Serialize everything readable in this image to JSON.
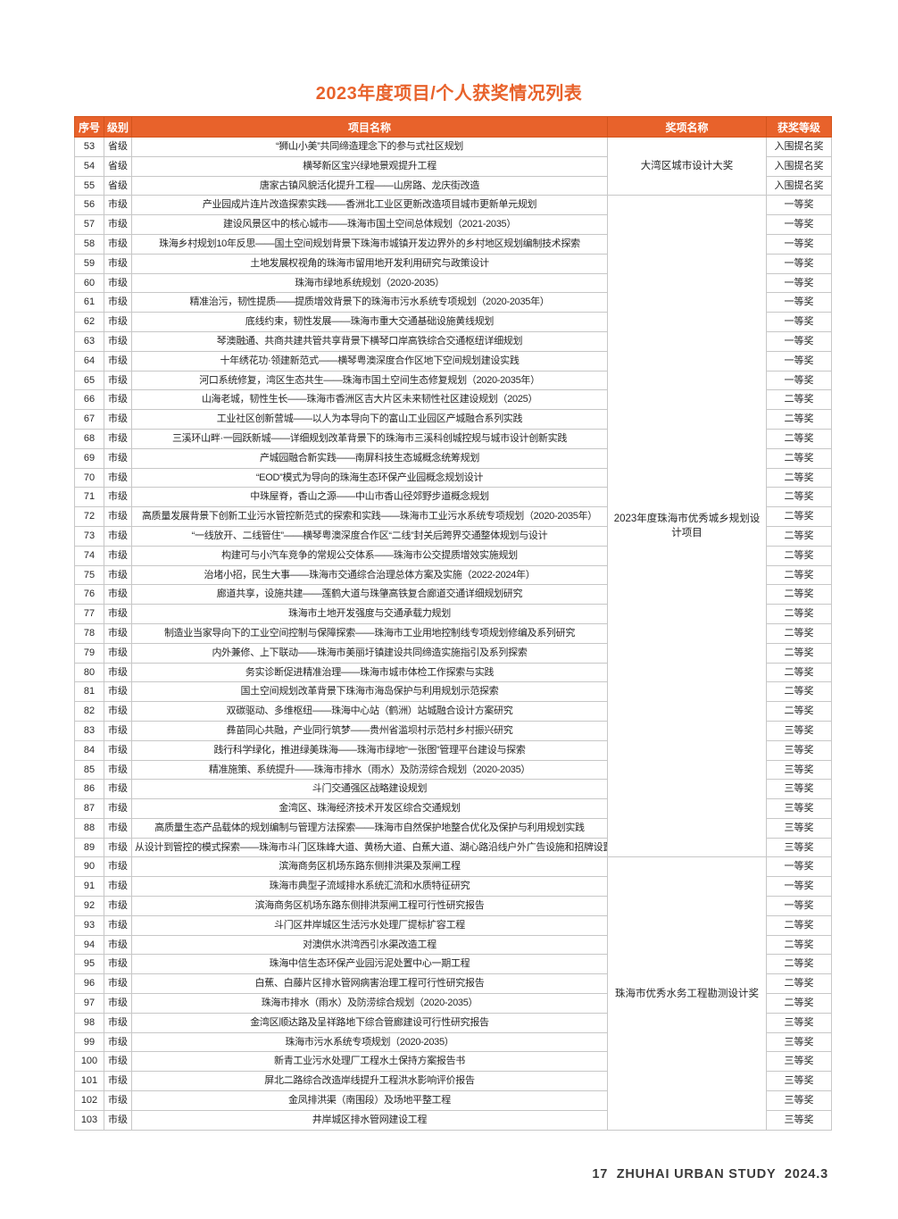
{
  "page": {
    "title": "2023年度项目/个人获奖情况列表",
    "footer": "17  ZHUHAI URBAN STUDY  2024.3"
  },
  "colors": {
    "accent_orange": "#e8622b",
    "header_divider": "#d3541c",
    "grid_line": "#c7c7c7",
    "body_text": "#262626",
    "footer_text": "#3a3a3a"
  },
  "table": {
    "headers": [
      "序号",
      "级别",
      "项目名称",
      "奖项名称",
      "获奖等级"
    ],
    "award_groups": [
      {
        "label": "大湾区城市设计大奖",
        "from": 53,
        "to": 55
      },
      {
        "label": "2023年度珠海市优秀城乡规划设计项目",
        "from": 56,
        "to": 89
      },
      {
        "label": "珠海市优秀水务工程勘测设计奖",
        "from": 90,
        "to": 103
      }
    ],
    "rows": [
      {
        "no": 53,
        "level": "省级",
        "project": "“狮山小美”共同缔造理念下的参与式社区规划",
        "grade": "入围提名奖"
      },
      {
        "no": 54,
        "level": "省级",
        "project": "横琴新区宝兴绿地景观提升工程",
        "grade": "入围提名奖"
      },
      {
        "no": 55,
        "level": "省级",
        "project": "唐家古镇风貌活化提升工程——山房路、龙庆街改造",
        "grade": "入围提名奖"
      },
      {
        "no": 56,
        "level": "市级",
        "project": "产业园成片连片改造探索实践——香洲北工业区更新改造项目城市更新单元规划",
        "grade": "一等奖"
      },
      {
        "no": 57,
        "level": "市级",
        "project": "建设风景区中的核心城市——珠海市国土空间总体规划（2021-2035）",
        "grade": "一等奖"
      },
      {
        "no": 58,
        "level": "市级",
        "project": "珠海乡村规划10年反思——国土空间规划背景下珠海市城镇开发边界外的乡村地区规划编制技术探索",
        "grade": "一等奖"
      },
      {
        "no": 59,
        "level": "市级",
        "project": "土地发展权视角的珠海市留用地开发利用研究与政策设计",
        "grade": "一等奖"
      },
      {
        "no": 60,
        "level": "市级",
        "project": "珠海市绿地系统规划（2020-2035）",
        "grade": "一等奖"
      },
      {
        "no": 61,
        "level": "市级",
        "project": "精准治污，韧性提质——提质增效背景下的珠海市污水系统专项规划（2020-2035年）",
        "grade": "一等奖"
      },
      {
        "no": 62,
        "level": "市级",
        "project": "底线约束，韧性发展——珠海市重大交通基础设施黄线规划",
        "grade": "一等奖"
      },
      {
        "no": 63,
        "level": "市级",
        "project": "琴澳融通、共商共建共管共享背景下横琴口岸高铁综合交通枢纽详细规划",
        "grade": "一等奖"
      },
      {
        "no": 64,
        "level": "市级",
        "project": "十年绣花功·领建新范式——横琴粤澳深度合作区地下空间规划建设实践",
        "grade": "一等奖"
      },
      {
        "no": 65,
        "level": "市级",
        "project": "河口系统修复，湾区生态共生——珠海市国土空间生态修复规划（2020-2035年）",
        "grade": "一等奖"
      },
      {
        "no": 66,
        "level": "市级",
        "project": "山海老城，韧性生长——珠海市香洲区吉大片区未来韧性社区建设规划（2025）",
        "grade": "二等奖"
      },
      {
        "no": 67,
        "level": "市级",
        "project": "工业社区创新营城——以人为本导向下的富山工业园区产城融合系列实践",
        "grade": "二等奖"
      },
      {
        "no": 68,
        "level": "市级",
        "project": "三溪环山畔·一园跃新城——详细规划改革背景下的珠海市三溪科创城控规与城市设计创新实践",
        "grade": "二等奖"
      },
      {
        "no": 69,
        "level": "市级",
        "project": "产城园融合新实践——南屏科技生态城概念统筹规划",
        "grade": "二等奖"
      },
      {
        "no": 70,
        "level": "市级",
        "project": "“EOD”模式为导向的珠海生态环保产业园概念规划设计",
        "grade": "二等奖"
      },
      {
        "no": 71,
        "level": "市级",
        "project": "中珠屋脊，香山之源——中山市香山径郊野步道概念规划",
        "grade": "二等奖"
      },
      {
        "no": 72,
        "level": "市级",
        "project": "高质量发展背景下创新工业污水管控新范式的探索和实践——珠海市工业污水系统专项规划（2020-2035年）",
        "grade": "二等奖"
      },
      {
        "no": 73,
        "level": "市级",
        "project": "“一线放开、二线管住”——横琴粤澳深度合作区“二线”封关后跨界交通整体规划与设计",
        "grade": "二等奖"
      },
      {
        "no": 74,
        "level": "市级",
        "project": "构建可与小汽车竞争的常规公交体系——珠海市公交提质增效实施规划",
        "grade": "二等奖"
      },
      {
        "no": 75,
        "level": "市级",
        "project": "治堵小招，民生大事——珠海市交通综合治理总体方案及实施（2022-2024年）",
        "grade": "二等奖"
      },
      {
        "no": 76,
        "level": "市级",
        "project": "廊道共享，设施共建——莲鹤大道与珠肇高铁复合廊道交通详细规划研究",
        "grade": "二等奖"
      },
      {
        "no": 77,
        "level": "市级",
        "project": "珠海市土地开发强度与交通承载力规划",
        "grade": "二等奖"
      },
      {
        "no": 78,
        "level": "市级",
        "project": "制造业当家导向下的工业空间控制与保障探索——珠海市工业用地控制线专项规划修编及系列研究",
        "grade": "二等奖"
      },
      {
        "no": 79,
        "level": "市级",
        "project": "内外兼修、上下联动——珠海市美丽圩镇建设共同缔造实施指引及系列探索",
        "grade": "二等奖"
      },
      {
        "no": 80,
        "level": "市级",
        "project": "务实诊断促进精准治理——珠海市城市体检工作探索与实践",
        "grade": "二等奖"
      },
      {
        "no": 81,
        "level": "市级",
        "project": "国土空间规划改革背景下珠海市海岛保护与利用规划示范探索",
        "grade": "二等奖"
      },
      {
        "no": 82,
        "level": "市级",
        "project": "双碳驱动、多维枢纽——珠海中心站（鹤洲）站城融合设计方案研究",
        "grade": "二等奖"
      },
      {
        "no": 83,
        "level": "市级",
        "project": "彝苗同心共融，产业同行筑梦——贵州省滥坝村示范村乡村振兴研究",
        "grade": "三等奖"
      },
      {
        "no": 84,
        "level": "市级",
        "project": "践行科学绿化，推进绿美珠海——珠海市绿地“一张图”管理平台建设与探索",
        "grade": "三等奖"
      },
      {
        "no": 85,
        "level": "市级",
        "project": "精准施策、系统提升——珠海市排水（雨水）及防涝综合规划（2020-2035）",
        "grade": "三等奖"
      },
      {
        "no": 86,
        "level": "市级",
        "project": "斗门交通强区战略建设规划",
        "grade": "三等奖"
      },
      {
        "no": 87,
        "level": "市级",
        "project": "金湾区、珠海经济技术开发区综合交通规划",
        "grade": "三等奖"
      },
      {
        "no": 88,
        "level": "市级",
        "project": "高质量生态产品载体的规划编制与管理方法探索——珠海市自然保护地整合优化及保护与利用规划实践",
        "grade": "三等奖"
      },
      {
        "no": 89,
        "level": "市级",
        "project": "从设计到管控的模式探索——珠海市斗门区珠峰大道、黄杨大道、白蕉大道、湖心路沿线户外广告设施和招牌设置详细规划",
        "grade": "三等奖"
      },
      {
        "no": 90,
        "level": "市级",
        "project": "滨海商务区机场东路东侧排洪渠及泵闸工程",
        "grade": "一等奖"
      },
      {
        "no": 91,
        "level": "市级",
        "project": "珠海市典型子流域排水系统汇流和水质特征研究",
        "grade": "一等奖"
      },
      {
        "no": 92,
        "level": "市级",
        "project": "滨海商务区机场东路东侧排洪泵闸工程可行性研究报告",
        "grade": "一等奖"
      },
      {
        "no": 93,
        "level": "市级",
        "project": "斗门区井岸城区生活污水处理厂提标扩容工程",
        "grade": "二等奖"
      },
      {
        "no": 94,
        "level": "市级",
        "project": "对澳供水洪湾西引水渠改造工程",
        "grade": "二等奖"
      },
      {
        "no": 95,
        "level": "市级",
        "project": "珠海中信生态环保产业园污泥处置中心一期工程",
        "grade": "二等奖"
      },
      {
        "no": 96,
        "level": "市级",
        "project": "白蕉、白藤片区排水管网病害治理工程可行性研究报告",
        "grade": "二等奖"
      },
      {
        "no": 97,
        "level": "市级",
        "project": "珠海市排水（雨水）及防涝综合规划（2020-2035）",
        "grade": "二等奖"
      },
      {
        "no": 98,
        "level": "市级",
        "project": "金湾区顺达路及呈祥路地下综合管廊建设可行性研究报告",
        "grade": "三等奖"
      },
      {
        "no": 99,
        "level": "市级",
        "project": "珠海市污水系统专项规划（2020-2035）",
        "grade": "三等奖"
      },
      {
        "no": 100,
        "level": "市级",
        "project": "新青工业污水处理厂工程水土保持方案报告书",
        "grade": "三等奖"
      },
      {
        "no": 101,
        "level": "市级",
        "project": "屏北二路综合改造岸线提升工程洪水影响评价报告",
        "grade": "三等奖"
      },
      {
        "no": 102,
        "level": "市级",
        "project": "金凤排洪渠（南围段）及场地平整工程",
        "grade": "三等奖"
      },
      {
        "no": 103,
        "level": "市级",
        "project": "井岸城区排水管网建设工程",
        "grade": "三等奖"
      }
    ]
  }
}
